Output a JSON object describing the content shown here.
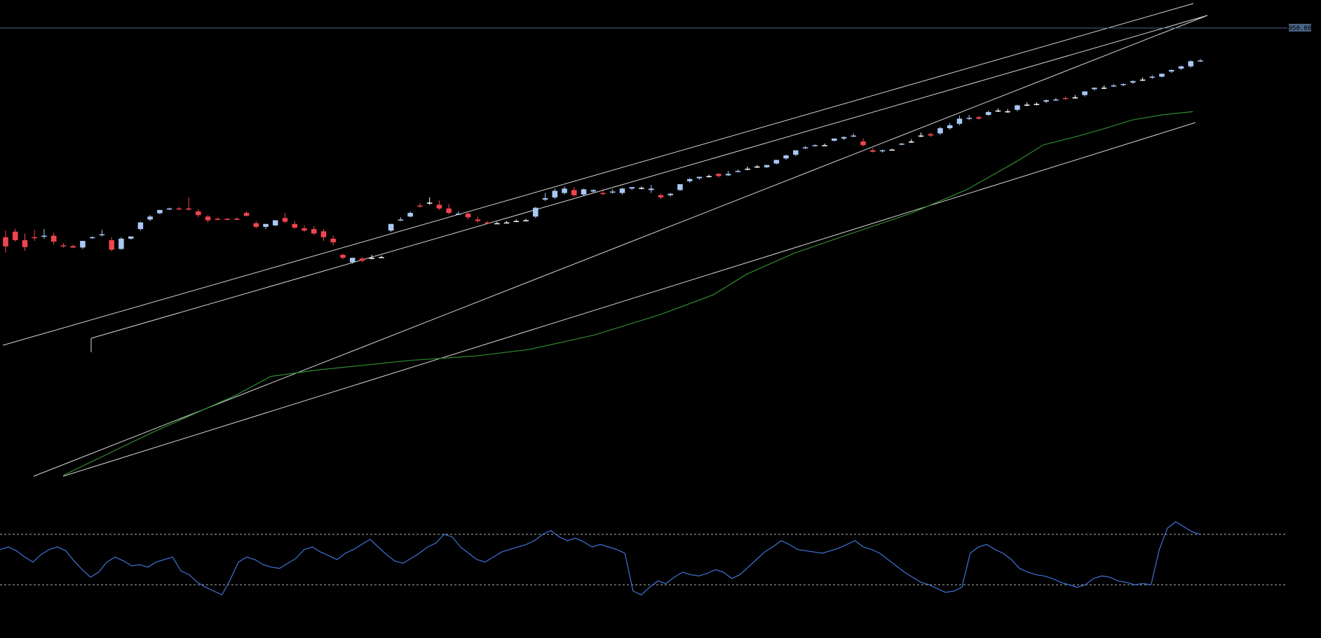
{
  "chart_data": {
    "type": "candlestick",
    "price_tag": "950.00",
    "colors": {
      "background": "#000000",
      "up_candle": "#a9c8f5",
      "down_candle": "#f0454f",
      "neutral_candle": "#ffffff",
      "moving_average": "#2e8b2e",
      "channel_lines": "#d8d8d8",
      "horizontal_level": "#4b6585",
      "oscillator_line": "#3f74d8",
      "oscillator_bands": "#b0b0b0",
      "price_tag_bg": "#4b6585",
      "price_tag_text": "#000000"
    },
    "price_ylim": [
      0,
      1050
    ],
    "horizontal_level": 950,
    "candles": [
      [
        440,
        458,
        415,
        398
      ],
      [
        455,
        463,
        432,
        428
      ],
      [
        432,
        450,
        413,
        403
      ],
      [
        440,
        460,
        438,
        430
      ],
      [
        442,
        462,
        444,
        436
      ],
      [
        444,
        452,
        428,
        420
      ],
      [
        418,
        424,
        416,
        412
      ],
      [
        416,
        420,
        412,
        410
      ],
      [
        412,
        430,
        430,
        408
      ],
      [
        438,
        442,
        440,
        436
      ],
      [
        446,
        460,
        448,
        442
      ],
      [
        432,
        440,
        406,
        402
      ],
      [
        408,
        440,
        436,
        406
      ],
      [
        436,
        440,
        442,
        434
      ],
      [
        462,
        482,
        480,
        458
      ],
      [
        488,
        500,
        496,
        484
      ],
      [
        505,
        514,
        514,
        502
      ],
      [
        516,
        520,
        518,
        514
      ],
      [
        518,
        522,
        516,
        514
      ],
      [
        518,
        548,
        515,
        512
      ],
      [
        510,
        516,
        500,
        494
      ],
      [
        496,
        500,
        486,
        480
      ],
      [
        490,
        494,
        488,
        486
      ],
      [
        490,
        492,
        488,
        486
      ],
      [
        490,
        494,
        488,
        486
      ],
      [
        506,
        510,
        498,
        496
      ],
      [
        478,
        484,
        468,
        464
      ],
      [
        468,
        476,
        476,
        462
      ],
      [
        472,
        486,
        486,
        470
      ],
      [
        492,
        506,
        482,
        478
      ],
      [
        476,
        484,
        466,
        462
      ],
      [
        464,
        472,
        458,
        454
      ],
      [
        462,
        470,
        450,
        446
      ],
      [
        456,
        462,
        440,
        430
      ],
      [
        436,
        444,
        426,
        418
      ],
      [
        392,
        396,
        384,
        380
      ],
      [
        372,
        380,
        384,
        368
      ],
      [
        382,
        386,
        376,
        372
      ],
      [
        384,
        392,
        384,
        380
      ],
      [
        386,
        390,
        386,
        384
      ],
      [
        458,
        476,
        476,
        454
      ],
      [
        486,
        494,
        488,
        484
      ],
      [
        496,
        510,
        506,
        494
      ],
      [
        526,
        532,
        524,
        520
      ],
      [
        534,
        548,
        534,
        528
      ],
      [
        528,
        540,
        518,
        514
      ],
      [
        518,
        530,
        506,
        502
      ],
      [
        502,
        510,
        504,
        500
      ],
      [
        504,
        510,
        494,
        488
      ],
      [
        488,
        496,
        484,
        480
      ],
      [
        480,
        484,
        478,
        476
      ],
      [
        478,
        482,
        478,
        476
      ],
      [
        480,
        484,
        480,
        478
      ],
      [
        484,
        488,
        484,
        482
      ],
      [
        486,
        490,
        486,
        484
      ],
      [
        496,
        522,
        520,
        492
      ],
      [
        542,
        560,
        546,
        538
      ],
      [
        548,
        572,
        566,
        544
      ],
      [
        560,
        578,
        572,
        556
      ],
      [
        568,
        576,
        554,
        550
      ],
      [
        556,
        572,
        570,
        552
      ],
      [
        564,
        570,
        568,
        560
      ],
      [
        560,
        572,
        558,
        554
      ],
      [
        562,
        570,
        564,
        558
      ],
      [
        560,
        574,
        572,
        556
      ],
      [
        572,
        576,
        576,
        568
      ],
      [
        574,
        578,
        574,
        570
      ],
      [
        568,
        582,
        572,
        560
      ],
      [
        554,
        558,
        548,
        544
      ],
      [
        554,
        560,
        558,
        550
      ],
      [
        568,
        584,
        584,
        566
      ],
      [
        592,
        600,
        598,
        588
      ],
      [
        600,
        604,
        604,
        596
      ],
      [
        606,
        610,
        606,
        602
      ],
      [
        612,
        614,
        606,
        602
      ],
      [
        608,
        620,
        612,
        606
      ],
      [
        618,
        624,
        620,
        616
      ],
      [
        626,
        632,
        626,
        622
      ],
      [
        632,
        636,
        632,
        628
      ],
      [
        630,
        636,
        636,
        628
      ],
      [
        640,
        650,
        650,
        638
      ],
      [
        654,
        664,
        662,
        650
      ],
      [
        664,
        676,
        676,
        660
      ],
      [
        682,
        688,
        684,
        680
      ],
      [
        688,
        692,
        690,
        686
      ],
      [
        690,
        694,
        690,
        688
      ],
      [
        702,
        708,
        708,
        700
      ],
      [
        708,
        714,
        712,
        704
      ],
      [
        714,
        722,
        716,
        712
      ],
      [
        700,
        708,
        690,
        686
      ],
      [
        676,
        682,
        672,
        670
      ],
      [
        674,
        678,
        676,
        670
      ],
      [
        678,
        680,
        678,
        676
      ],
      [
        692,
        696,
        694,
        690
      ],
      [
        700,
        706,
        700,
        696
      ],
      [
        716,
        724,
        716,
        712
      ],
      [
        720,
        724,
        716,
        712
      ],
      [
        722,
        740,
        736,
        718
      ],
      [
        736,
        750,
        744,
        732
      ],
      [
        748,
        770,
        762,
        744
      ],
      [
        762,
        772,
        764,
        758
      ],
      [
        766,
        770,
        762,
        758
      ],
      [
        772,
        784,
        780,
        770
      ],
      [
        784,
        790,
        784,
        780
      ],
      [
        782,
        788,
        782,
        778
      ],
      [
        786,
        800,
        798,
        782
      ],
      [
        800,
        806,
        800,
        796
      ],
      [
        802,
        806,
        802,
        798
      ],
      [
        808,
        814,
        812,
        804
      ],
      [
        812,
        818,
        814,
        810
      ],
      [
        818,
        822,
        816,
        814
      ],
      [
        820,
        826,
        820,
        816
      ],
      [
        826,
        836,
        836,
        822
      ],
      [
        842,
        846,
        846,
        838
      ],
      [
        846,
        852,
        846,
        842
      ],
      [
        850,
        856,
        852,
        848
      ],
      [
        854,
        858,
        856,
        850
      ],
      [
        860,
        866,
        864,
        856
      ],
      [
        868,
        874,
        868,
        864
      ],
      [
        874,
        880,
        876,
        870
      ],
      [
        876,
        884,
        884,
        874
      ],
      [
        890,
        896,
        894,
        886
      ],
      [
        898,
        906,
        904,
        894
      ],
      [
        904,
        920,
        918,
        900
      ],
      [
        918,
        924,
        920,
        916
      ]
    ],
    "moving_average": [
      [
        0.048,
        0.745
      ],
      [
        0.115,
        0.678
      ],
      [
        0.178,
        0.62
      ],
      [
        0.205,
        0.59
      ],
      [
        0.24,
        0.58
      ],
      [
        0.31,
        0.565
      ],
      [
        0.36,
        0.558
      ],
      [
        0.4,
        0.548
      ],
      [
        0.45,
        0.525
      ],
      [
        0.5,
        0.493
      ],
      [
        0.54,
        0.462
      ],
      [
        0.565,
        0.43
      ],
      [
        0.601,
        0.397
      ],
      [
        0.643,
        0.367
      ],
      [
        0.69,
        0.334
      ],
      [
        0.732,
        0.297
      ],
      [
        0.768,
        0.255
      ],
      [
        0.79,
        0.227
      ],
      [
        0.813,
        0.215
      ],
      [
        0.837,
        0.201
      ],
      [
        0.857,
        0.188
      ],
      [
        0.88,
        0.18
      ],
      [
        0.903,
        0.175
      ]
    ],
    "oscillator": [
      58,
      60,
      57,
      52,
      48,
      54,
      58,
      60,
      57,
      49,
      42,
      36,
      40,
      48,
      52,
      49,
      45,
      46,
      44,
      48,
      50,
      52,
      41,
      38,
      32,
      28,
      25,
      22,
      34,
      48,
      52,
      50,
      46,
      44,
      43,
      47,
      51,
      58,
      60,
      56,
      53,
      50,
      55,
      58,
      62,
      66,
      60,
      54,
      49,
      47,
      51,
      55,
      60,
      63,
      70,
      68,
      60,
      55,
      50,
      48,
      52,
      56,
      58,
      60,
      62,
      65,
      70,
      73,
      68,
      65,
      67,
      64,
      60,
      62,
      60,
      58,
      55,
      25,
      22,
      28,
      33,
      31,
      36,
      40,
      38,
      37,
      39,
      42,
      40,
      35,
      38,
      44,
      50,
      56,
      60,
      65,
      62,
      58,
      57,
      56,
      55,
      57,
      59,
      62,
      65,
      60,
      58,
      55,
      50,
      45,
      40,
      36,
      32,
      30,
      27,
      24,
      25,
      28,
      55,
      60,
      62,
      58,
      55,
      50,
      43,
      40,
      38,
      37,
      35,
      32,
      30,
      28,
      30,
      35,
      37,
      36,
      33,
      32,
      30,
      31,
      30,
      58,
      75,
      80,
      76,
      72,
      70
    ],
    "oscillator_levels": [
      70,
      30
    ]
  }
}
